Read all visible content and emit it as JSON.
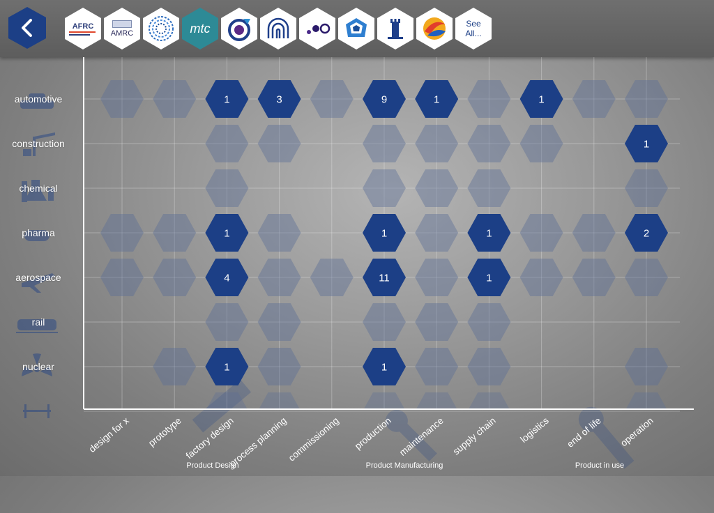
{
  "toolbar": {
    "back_icon": "chevron-left-icon",
    "partners": [
      {
        "name": "afrc-logo",
        "text": "AFRC",
        "subtext": ""
      },
      {
        "name": "amrc-logo",
        "text": "AMRC",
        "subtext": ""
      },
      {
        "name": "spiral-logo",
        "text": "",
        "subtext": ""
      },
      {
        "name": "mtc-logo",
        "text": "mtc",
        "subtext": ""
      },
      {
        "name": "nccc-logo",
        "text": "",
        "subtext": ""
      },
      {
        "name": "arch-logo",
        "text": "",
        "subtext": ""
      },
      {
        "name": "dots-logo",
        "text": "",
        "subtext": ""
      },
      {
        "name": "gem-logo",
        "text": "",
        "subtext": ""
      },
      {
        "name": "tower-logo",
        "text": "",
        "subtext": ""
      },
      {
        "name": "swirl-logo",
        "text": "",
        "subtext": ""
      }
    ],
    "see_all_line1": "See",
    "see_all_line2": "All..."
  },
  "colors": {
    "accent": "#1c3f86",
    "inactive_hex": "#5a6e96",
    "background": "#9a9a9a",
    "toolbar": "#646464"
  },
  "chart_data": {
    "type": "heatmap",
    "industries": [
      "automotive",
      "construction",
      "chemical",
      "pharma",
      "aerospace",
      "rail",
      "nuclear"
    ],
    "industry_icons": [
      "car-icon",
      "crane-icon",
      "flask-icon",
      "pill-icon",
      "plane-icon",
      "train-icon",
      "radiation-icon"
    ],
    "stages": [
      "design for x",
      "prototype",
      "factory design",
      "process planning",
      "commissioning",
      "production",
      "maintenance",
      "supply chain",
      "logistics",
      "end of life",
      "operation"
    ],
    "stage_groups": [
      {
        "label": "Product Design",
        "icon": "ruler-icon"
      },
      {
        "label": "Product Manufacturing",
        "icon": "wrench-icon"
      },
      {
        "label": "Product in use",
        "icon": "wrench-icon"
      }
    ],
    "cells": [
      [
        0,
        0,
        1,
        3,
        0,
        9,
        1,
        0,
        1,
        0,
        0
      ],
      [
        null,
        null,
        0,
        0,
        null,
        0,
        0,
        0,
        0,
        null,
        1
      ],
      [
        null,
        null,
        0,
        null,
        null,
        0,
        0,
        0,
        null,
        null,
        0
      ],
      [
        0,
        0,
        1,
        0,
        null,
        1,
        0,
        1,
        0,
        0,
        2
      ],
      [
        0,
        0,
        4,
        0,
        0,
        11,
        0,
        1,
        0,
        0,
        0
      ],
      [
        null,
        null,
        0,
        0,
        null,
        0,
        0,
        0,
        null,
        null,
        null
      ],
      [
        null,
        0,
        1,
        0,
        null,
        1,
        0,
        0,
        null,
        null,
        0
      ]
    ],
    "partial_row_icon": "bridge-icon",
    "partial_row_cells": [
      null,
      null,
      0,
      0,
      null,
      0,
      0,
      0,
      null,
      null,
      0
    ],
    "grid": true
  }
}
